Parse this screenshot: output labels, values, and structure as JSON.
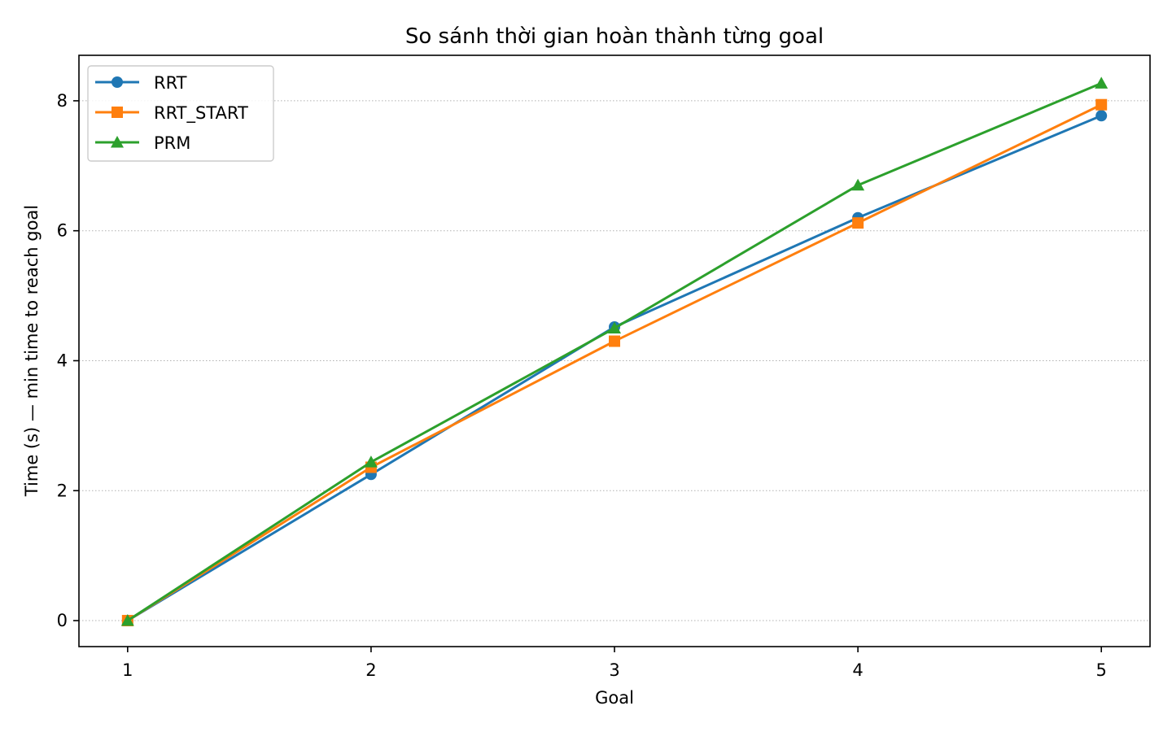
{
  "chart_data": {
    "type": "line",
    "title": "So sánh thời gian hoàn thành từng goal",
    "xlabel": "Goal",
    "ylabel": "Time (s) — min time to reach goal",
    "x": [
      1,
      2,
      3,
      4,
      5
    ],
    "xticks": [
      "1",
      "2",
      "3",
      "4",
      "5"
    ],
    "yticks": [
      "0",
      "2",
      "4",
      "6",
      "8"
    ],
    "xlim": [
      0.8,
      5.2
    ],
    "ylim": [
      -0.4,
      8.7
    ],
    "grid": "y-dotted",
    "legend_position": "upper-left",
    "series": [
      {
        "name": "RRT",
        "color": "#1f77b4",
        "marker": "circle",
        "values": [
          0.0,
          2.25,
          4.52,
          6.2,
          7.77
        ]
      },
      {
        "name": "RRT_START",
        "color": "#ff7f0e",
        "marker": "square",
        "values": [
          0.0,
          2.36,
          4.3,
          6.12,
          7.94
        ]
      },
      {
        "name": "PRM",
        "color": "#2ca02c",
        "marker": "triangle",
        "values": [
          0.0,
          2.44,
          4.5,
          6.7,
          8.27
        ]
      }
    ]
  }
}
